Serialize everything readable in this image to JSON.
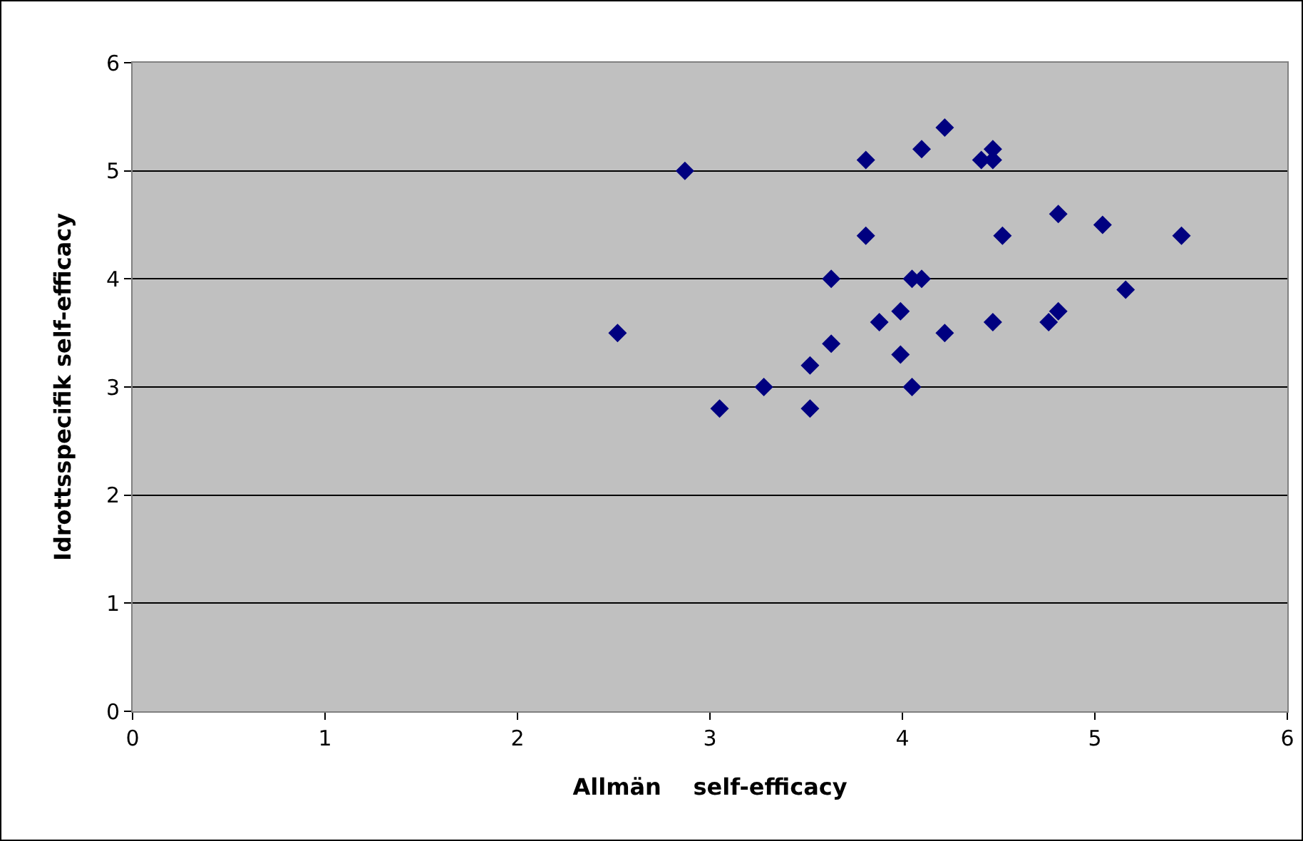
{
  "chart_data": {
    "type": "scatter",
    "xlabel": "Allmän    self-efficacy",
    "ylabel": "Idrottsspecifik self-efficacy",
    "marker": "diamond",
    "grid": "y",
    "x": [
      2.52,
      2.87,
      3.05,
      3.28,
      3.52,
      3.52,
      3.63,
      3.63,
      3.81,
      3.81,
      3.88,
      3.99,
      3.99,
      4.05,
      4.05,
      4.1,
      4.1,
      4.22,
      4.22,
      4.41,
      4.47,
      4.47,
      4.47,
      4.52,
      4.81,
      4.76,
      4.81,
      5.04,
      5.16,
      5.45
    ],
    "series": [
      {
        "color": "#000080",
        "values": [
          3.5,
          5.0,
          2.8,
          3.0,
          3.2,
          2.8,
          4.0,
          3.4,
          5.1,
          4.4,
          3.6,
          3.7,
          3.3,
          4.0,
          3.0,
          4.0,
          5.2,
          5.4,
          3.5,
          5.1,
          5.2,
          5.1,
          3.6,
          4.4,
          4.6,
          3.6,
          3.7,
          4.5,
          3.9,
          4.4
        ]
      }
    ],
    "xlim": [
      0,
      6
    ],
    "xticks": [
      0,
      1,
      2,
      3,
      4,
      5,
      6
    ],
    "ylim": [
      0,
      6
    ],
    "yticks": [
      0,
      1,
      2,
      3,
      4,
      5,
      6
    ]
  }
}
